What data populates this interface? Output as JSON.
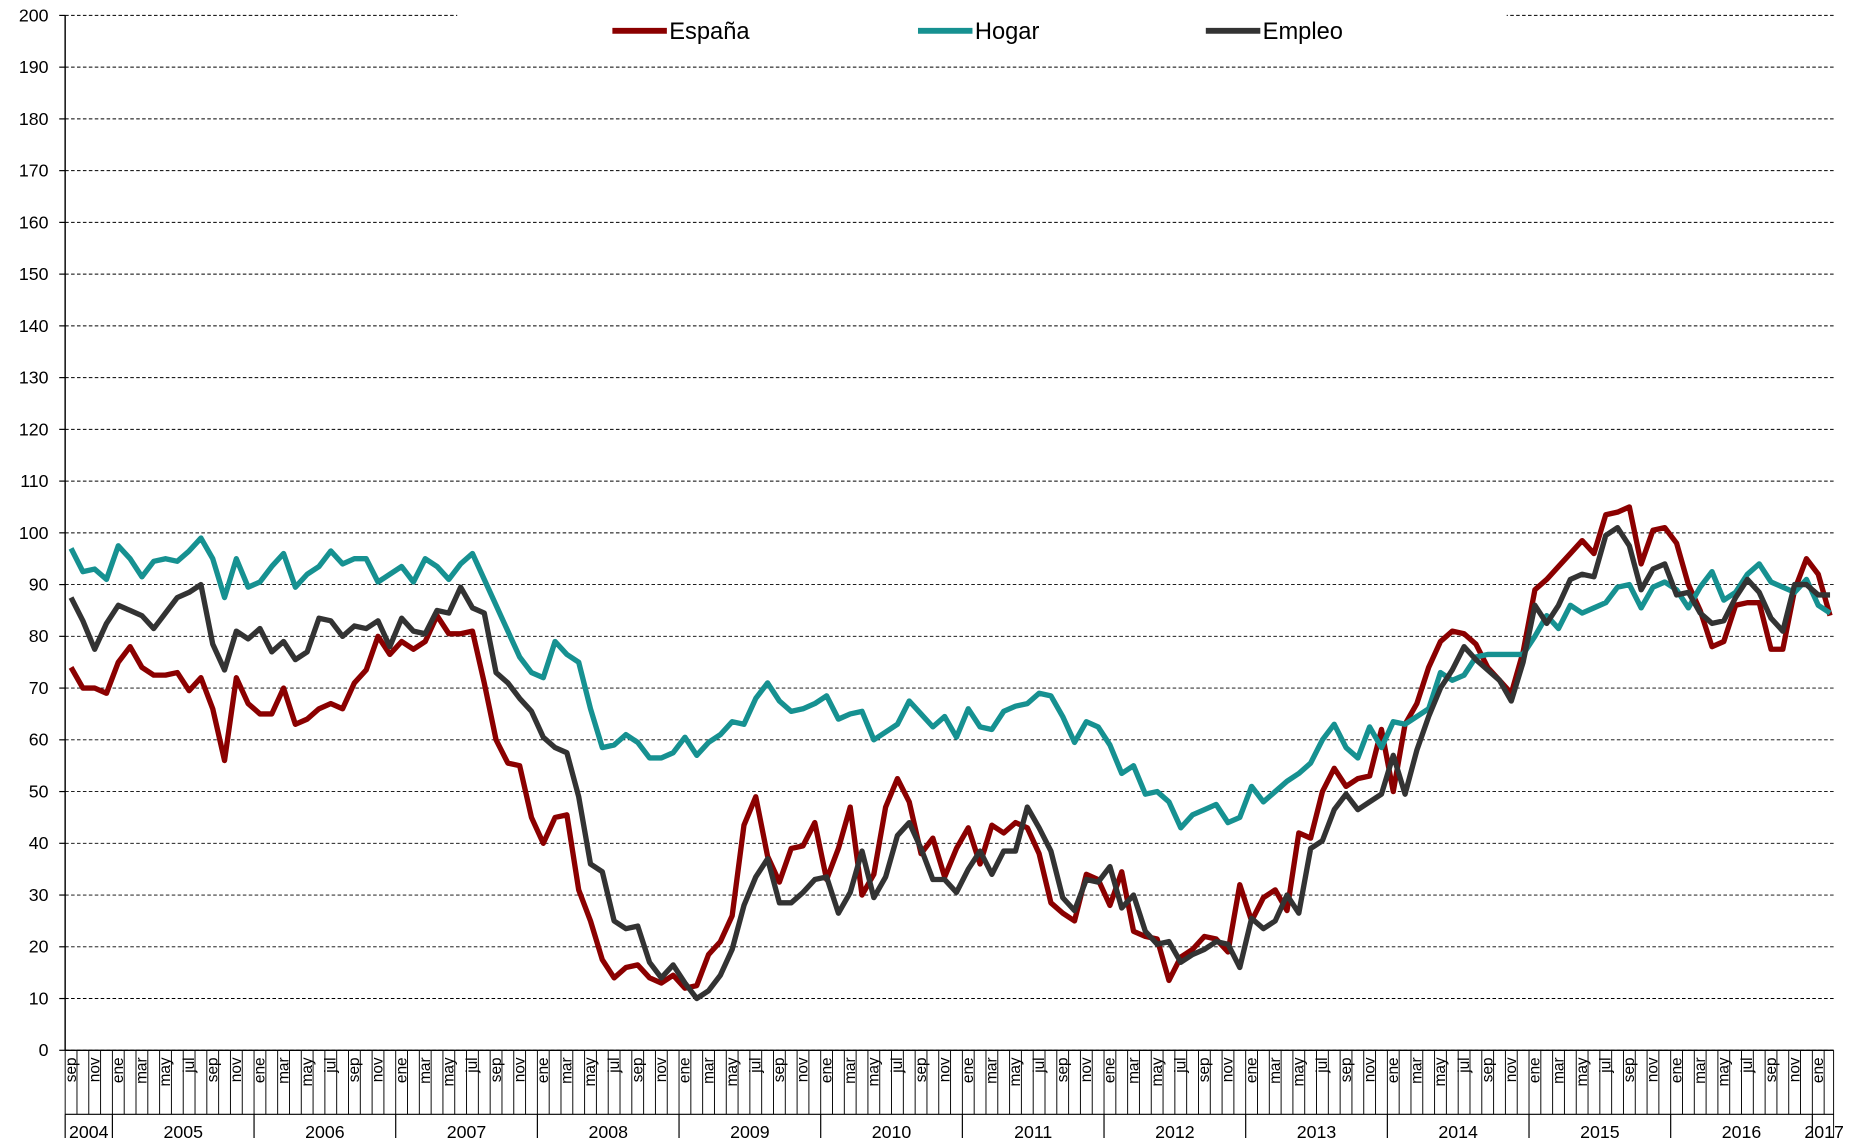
{
  "chart_data": {
    "type": "line",
    "categories": [
      "sep",
      null,
      "nov",
      null,
      "ene",
      null,
      "mar",
      null,
      "may",
      null,
      "jul",
      null,
      "sep",
      null,
      "nov",
      null,
      "ene",
      null,
      "mar",
      null,
      "may",
      null,
      "jul",
      null,
      "sep",
      null,
      "nov",
      null,
      "ene",
      null,
      "mar",
      null,
      "may",
      null,
      "jul",
      null,
      "sep",
      null,
      "nov",
      null,
      "ene",
      null,
      "mar",
      null,
      "may",
      null,
      "jul",
      null,
      "sep",
      null,
      "nov",
      null,
      "ene",
      null,
      "mar",
      null,
      "may",
      null,
      "jul",
      null,
      "sep",
      null,
      "nov",
      null,
      "ene",
      null,
      "mar",
      null,
      "may",
      null,
      "jul",
      null,
      "sep",
      null,
      "nov",
      null,
      "ene",
      null,
      "mar",
      null,
      "may",
      null,
      "jul",
      null,
      "sep",
      null,
      "nov",
      null,
      "ene",
      null,
      "mar",
      null,
      "may",
      null,
      "jul",
      null,
      "sep",
      null,
      "nov",
      null,
      "ene",
      null,
      "mar",
      null,
      "may",
      null,
      "jul",
      null,
      "sep",
      null,
      "nov",
      null,
      "ene",
      null,
      "mar",
      null,
      "may",
      null,
      "jul",
      null,
      "sep",
      null,
      "nov",
      null,
      "ene",
      null,
      "mar",
      null,
      "may",
      null,
      "jul",
      null,
      "sep",
      null,
      "nov",
      null,
      "ene",
      null,
      "mar",
      null,
      "may",
      null,
      "jul",
      null,
      "sep",
      null,
      "nov",
      null,
      "ene",
      null
    ],
    "years": [
      "2004",
      "2005",
      "2006",
      "2007",
      "2008",
      "2009",
      "2010",
      "2011",
      "2012",
      "2013",
      "2014",
      "2015",
      "2016",
      "2017"
    ],
    "series": [
      {
        "name": "España",
        "color": "#8b0000",
        "values": [
          74,
          70,
          70,
          69,
          75,
          78,
          74,
          72.5,
          72.5,
          73,
          69.5,
          72,
          66,
          56,
          72,
          67,
          65,
          65,
          70,
          63,
          64,
          66,
          67,
          66,
          71,
          73.5,
          80,
          76.5,
          79,
          77.5,
          79,
          84,
          80.5,
          80.5,
          81,
          71,
          60,
          55.5,
          55,
          45,
          40,
          45,
          45.5,
          31,
          25,
          17.5,
          14,
          16,
          16.5,
          14,
          13,
          14.5,
          12,
          12.5,
          18.5,
          21,
          26,
          43.5,
          49,
          37.5,
          32.5,
          39,
          39.5,
          44,
          33,
          39,
          47,
          30,
          34,
          47,
          52.5,
          48,
          38,
          41,
          33.5,
          39,
          43,
          36,
          43.5,
          42,
          44,
          43,
          38,
          28.5,
          26.5,
          25,
          34,
          33,
          28,
          34.5,
          23,
          22,
          21.5,
          13.5,
          18,
          19.5,
          22,
          21.5,
          19,
          32,
          25,
          29.5,
          31,
          27,
          42,
          41,
          50,
          54.5,
          51,
          52.5,
          53,
          62,
          50,
          63,
          67,
          74,
          79,
          81,
          80.5,
          78.5,
          74,
          71.5,
          69,
          77,
          89,
          91,
          93.5,
          96,
          98.5,
          96,
          103.5,
          104,
          105,
          94,
          100.5,
          101,
          98,
          90,
          85,
          78,
          79,
          86,
          86.5,
          86.5,
          77.5,
          77.5,
          89,
          95,
          92,
          84
        ]
      },
      {
        "name": "Hogar",
        "color": "#169191",
        "values": [
          97,
          92.5,
          93,
          91,
          97.5,
          95,
          91.5,
          94.5,
          95,
          94.5,
          96.5,
          99,
          95,
          87.5,
          95,
          89.5,
          90.5,
          93.5,
          96,
          89.5,
          92,
          93.5,
          96.5,
          94,
          95,
          95,
          90.5,
          92,
          93.5,
          90.5,
          95,
          93.5,
          91,
          94,
          96,
          91,
          86,
          81,
          76,
          73,
          72,
          79,
          76.5,
          75,
          66,
          58.5,
          59,
          61,
          59.5,
          56.5,
          56.5,
          57.5,
          60.5,
          57,
          59.5,
          61,
          63.5,
          63,
          68,
          71,
          67.5,
          65.5,
          66,
          67,
          68.5,
          64,
          65,
          65.5,
          60,
          61.5,
          63,
          67.5,
          65,
          62.5,
          64.5,
          60.5,
          66,
          62.5,
          62,
          65.5,
          66.5,
          67,
          69,
          68.5,
          64.5,
          59.5,
          63.5,
          62.5,
          59,
          53.5,
          55,
          49.5,
          50,
          48,
          43,
          45.5,
          46.5,
          47.5,
          44,
          45,
          51,
          48,
          50,
          52,
          53.5,
          55.5,
          60,
          63,
          58.5,
          56.5,
          62.5,
          58.5,
          63.5,
          63,
          64.5,
          66,
          73,
          71.5,
          72.5,
          76,
          76.5,
          76.5,
          76.5,
          76.5,
          80,
          84,
          81.5,
          86,
          84.5,
          85.5,
          86.5,
          89.5,
          90,
          85.5,
          89.5,
          90.5,
          89,
          85.5,
          89.5,
          92.5,
          87,
          88.5,
          92,
          94,
          90.5,
          89.5,
          88.5,
          91,
          86,
          84.5
        ]
      },
      {
        "name": "Empleo",
        "color": "#333333",
        "values": [
          87.5,
          83,
          77.5,
          82.5,
          86,
          85,
          84,
          81.5,
          84.5,
          87.5,
          88.5,
          90,
          78.5,
          73.5,
          81,
          79.5,
          81.5,
          77,
          79,
          75.5,
          77,
          83.5,
          83,
          80,
          82,
          81.5,
          83,
          78,
          83.5,
          81,
          80.5,
          85,
          84.5,
          89.5,
          85.5,
          84.5,
          73,
          71,
          68,
          65.5,
          60.5,
          58.5,
          57.5,
          49,
          36,
          34.5,
          25,
          23.5,
          24,
          17,
          14,
          16.5,
          13,
          10,
          11.5,
          14.5,
          19.5,
          28,
          33.5,
          37,
          28.5,
          28.5,
          30.5,
          33,
          33.5,
          26.5,
          30.5,
          38.5,
          29.5,
          33.5,
          41.5,
          44,
          39,
          33,
          33,
          30.5,
          35,
          38.5,
          34,
          38.5,
          38.5,
          47,
          43,
          38.5,
          29.5,
          27,
          33,
          32.5,
          35.5,
          27.5,
          30,
          23,
          20.5,
          21,
          17,
          18.5,
          19.5,
          21,
          20.5,
          16,
          25.5,
          23.5,
          25,
          30,
          26.5,
          39,
          40.5,
          46.5,
          49.5,
          46.5,
          48,
          49.5,
          57,
          49.5,
          58,
          64.5,
          70,
          73.5,
          78,
          75.5,
          73.5,
          71.5,
          67.5,
          75,
          86,
          82.5,
          86,
          91,
          92,
          91.5,
          99.5,
          101,
          97.5,
          89,
          93,
          94,
          88,
          88.5,
          84.5,
          82.5,
          83,
          87.5,
          91,
          88.5,
          83.5,
          81,
          90,
          90,
          88,
          88
        ]
      }
    ],
    "ylim": [
      0,
      200
    ],
    "yticks": [
      0,
      10,
      20,
      30,
      40,
      50,
      60,
      70,
      80,
      90,
      100,
      110,
      120,
      130,
      140,
      150,
      160,
      170,
      180,
      190,
      200
    ],
    "grid": true,
    "legend": "top"
  }
}
